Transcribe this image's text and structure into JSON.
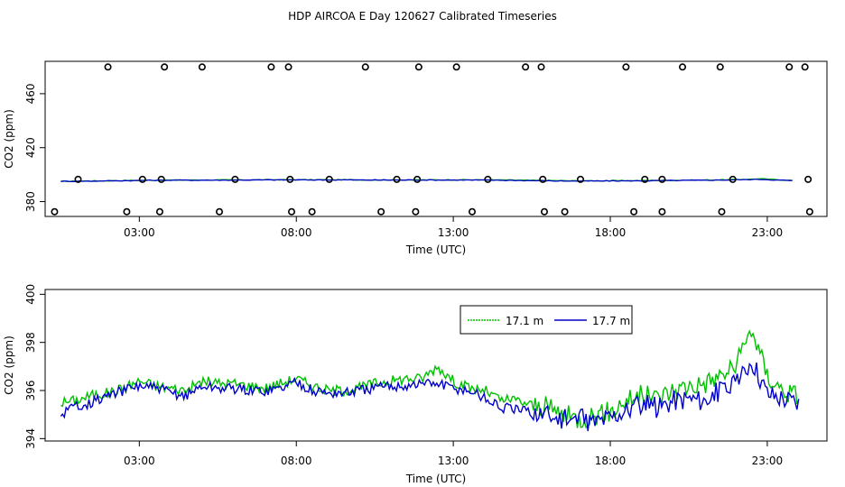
{
  "page_title": "HDP AIRCOA E  Day 120627  Calibrated Timeseries",
  "colors": {
    "series_17_1": "#00c000",
    "series_17_7": "#0000cc",
    "axis": "#000000",
    "background": "#ffffff"
  },
  "chart_data": [
    {
      "type": "scatter+line",
      "title": "",
      "xlabel": "Time (UTC)",
      "ylabel": "CO2 (ppm)",
      "xlim_hours": [
        0,
        24.9
      ],
      "ylim": [
        369,
        484
      ],
      "x_ticks": [
        {
          "value": 3,
          "label": "03:00"
        },
        {
          "value": 8,
          "label": "08:00"
        },
        {
          "value": 13,
          "label": "13:00"
        },
        {
          "value": 18,
          "label": "18:00"
        },
        {
          "value": 23,
          "label": "23:00"
        }
      ],
      "y_ticks": [
        380,
        420,
        460
      ],
      "calibration_points": {
        "high_y": 479.8,
        "high_x": [
          2.0,
          3.8,
          5.0,
          7.2,
          7.75,
          10.2,
          11.9,
          13.1,
          15.3,
          15.8,
          18.5,
          20.3,
          21.5,
          23.7,
          24.2
        ],
        "mid_y": 396.5,
        "mid_x": [
          1.05,
          3.1,
          3.7,
          6.05,
          7.8,
          9.05,
          11.2,
          11.85,
          14.1,
          15.85,
          17.05,
          19.1,
          19.65,
          21.9,
          24.3
        ],
        "low_y": 372.5,
        "low_x": [
          0.3,
          2.6,
          3.65,
          5.55,
          7.85,
          8.5,
          10.7,
          11.8,
          13.6,
          15.9,
          16.55,
          18.75,
          19.65,
          21.55,
          24.35
        ]
      },
      "series": [
        {
          "name": "17.1 m",
          "values": [
            395.0,
            395.3,
            395.6,
            395.9,
            396.0,
            396.0,
            396.1,
            396.2,
            396.2,
            396.2,
            396.1,
            396.1,
            396.1,
            396.2,
            396.1,
            395.9,
            395.6,
            395.4,
            395.5,
            395.6,
            395.8,
            396.0,
            396.3,
            396.9,
            395.7
          ]
        },
        {
          "name": "17.7 m",
          "values": [
            395.0,
            395.2,
            395.5,
            395.8,
            395.9,
            395.9,
            396.0,
            396.1,
            396.1,
            396.1,
            396.0,
            396.0,
            396.0,
            396.0,
            395.9,
            395.7,
            395.4,
            395.2,
            395.3,
            395.4,
            395.6,
            395.8,
            396.1,
            396.5,
            395.5
          ]
        }
      ]
    },
    {
      "type": "line",
      "title": "",
      "xlabel": "Time (UTC)",
      "ylabel": "CO2 (ppm)",
      "xlim_hours": [
        0,
        24.9
      ],
      "ylim": [
        393.9,
        400.2
      ],
      "x_ticks": [
        {
          "value": 3,
          "label": "03:00"
        },
        {
          "value": 8,
          "label": "08:00"
        },
        {
          "value": 13,
          "label": "13:00"
        },
        {
          "value": 18,
          "label": "18:00"
        },
        {
          "value": 23,
          "label": "23:00"
        }
      ],
      "y_ticks": [
        {
          "value": 394,
          "label": "394"
        },
        {
          "value": 396,
          "label": "396"
        },
        {
          "value": 398,
          "label": "398"
        },
        {
          "value": 400,
          "label": "400"
        }
      ],
      "legend_position": "top-center",
      "x_hours": [
        0.5,
        1,
        1.5,
        2,
        2.5,
        3,
        3.5,
        4,
        4.5,
        5,
        5.5,
        6,
        6.5,
        7,
        7.5,
        8,
        8.5,
        9,
        9.5,
        10,
        10.5,
        11,
        11.5,
        12,
        12.5,
        13,
        13.5,
        14,
        14.5,
        15,
        15.5,
        16,
        16.5,
        17,
        17.5,
        18,
        18.5,
        19,
        19.5,
        20,
        20.5,
        21,
        21.5,
        22,
        22.5,
        23,
        23.5,
        24
      ],
      "series": [
        {
          "name": "17.1 m",
          "values": [
            395.5,
            395.6,
            395.8,
            395.9,
            396.1,
            396.4,
            396.2,
            396.1,
            396.0,
            396.4,
            396.3,
            396.3,
            396.2,
            396.1,
            396.3,
            396.5,
            396.2,
            396.0,
            396.0,
            396.1,
            396.3,
            396.4,
            396.5,
            396.5,
            397.0,
            396.4,
            396.1,
            396.0,
            395.6,
            395.6,
            395.4,
            395.3,
            395.0,
            394.8,
            395.0,
            395.1,
            395.6,
            395.8,
            395.7,
            396.0,
            396.2,
            396.3,
            396.6,
            397.0,
            398.6,
            396.6,
            396.0,
            395.8
          ]
        },
        {
          "name": "17.7 m",
          "values": [
            395.0,
            395.4,
            395.5,
            395.8,
            396.0,
            396.2,
            396.1,
            395.9,
            395.8,
            396.2,
            396.1,
            396.1,
            396.0,
            396.0,
            396.1,
            396.4,
            396.0,
            395.9,
            395.9,
            396.0,
            396.1,
            396.2,
            396.2,
            396.3,
            396.3,
            396.1,
            396.0,
            395.7,
            395.3,
            395.2,
            395.1,
            395.0,
            394.8,
            394.8,
            394.7,
            394.9,
            395.2,
            395.4,
            395.3,
            395.6,
            395.7,
            395.6,
            396.0,
            396.2,
            397.3,
            395.9,
            395.7,
            395.5
          ]
        }
      ]
    }
  ]
}
